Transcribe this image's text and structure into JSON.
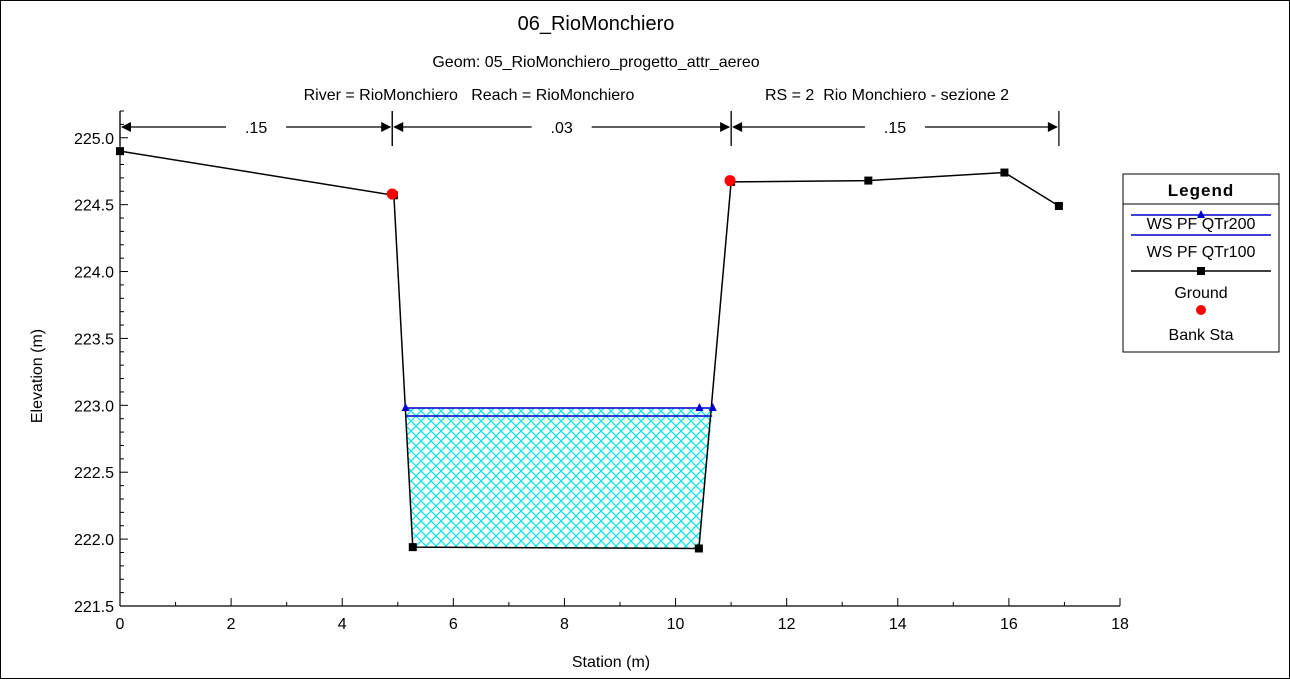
{
  "chart_data": {
    "type": "line",
    "title": "06_RioMonchiero",
    "subtitle": "Geom: 05_RioMonchiero_progetto_attr_aereo",
    "header_left": "River = RioMonchiero   Reach = RioMonchiero",
    "header_right": "RS = 2  Rio Monchiero - sezione 2",
    "xlabel": "Station (m)",
    "ylabel": "Elevation (m)",
    "xlim": [
      0,
      18
    ],
    "ylim": [
      221.5,
      225.2
    ],
    "xticks": [
      0,
      2,
      4,
      6,
      8,
      10,
      12,
      14,
      16,
      18
    ],
    "xtick_labels": [
      "0",
      "2",
      "4",
      "6",
      "8",
      "10",
      "12",
      "14",
      "16",
      "18"
    ],
    "yticks": [
      221.5,
      222.0,
      222.5,
      223.0,
      223.5,
      224.0,
      224.5,
      225.0
    ],
    "ytick_labels": [
      "221.5",
      "222.0",
      "222.5",
      "223.0",
      "223.5",
      "224.0",
      "224.5",
      "225.0"
    ],
    "manning": [
      {
        "from": 0,
        "to": 4.9,
        "label": ".15"
      },
      {
        "from": 4.9,
        "to": 11.0,
        "label": ".03"
      },
      {
        "from": 11.0,
        "to": 16.9,
        "label": ".15"
      }
    ],
    "series": [
      {
        "name": "WS PF QTr200",
        "color": "#0000cc",
        "marker": "triangle",
        "elevation": 222.98,
        "x": [
          5.14,
          10.43,
          10.67
        ],
        "y": [
          222.98,
          222.98,
          222.98
        ]
      },
      {
        "name": "WS PF QTr100",
        "color": "#0000cc",
        "marker": "none",
        "elevation": 222.92,
        "x": [
          5.15,
          10.66
        ],
        "y": [
          222.92,
          222.92
        ]
      },
      {
        "name": "Ground",
        "color": "#000000",
        "marker": "square",
        "x": [
          0,
          4.93,
          5.27,
          10.42,
          11.0,
          13.47,
          15.92,
          16.9
        ],
        "y": [
          224.9,
          224.57,
          221.94,
          221.93,
          224.67,
          224.68,
          224.74,
          224.49
        ]
      },
      {
        "name": "Bank Sta",
        "color": "#ff0000",
        "marker": "circle",
        "x": [
          4.9,
          10.98
        ],
        "y": [
          224.58,
          224.68
        ]
      }
    ],
    "legend": {
      "title": "Legend",
      "placement": "right",
      "entries": [
        "WS PF QTr200",
        "WS PF QTr100",
        "Ground",
        "Bank Sta"
      ]
    },
    "colors": {
      "water_fill": "#00e5e5",
      "water_line": "#0000cc",
      "ground": "#000000",
      "bank": "#ff0000"
    },
    "grid": false
  }
}
